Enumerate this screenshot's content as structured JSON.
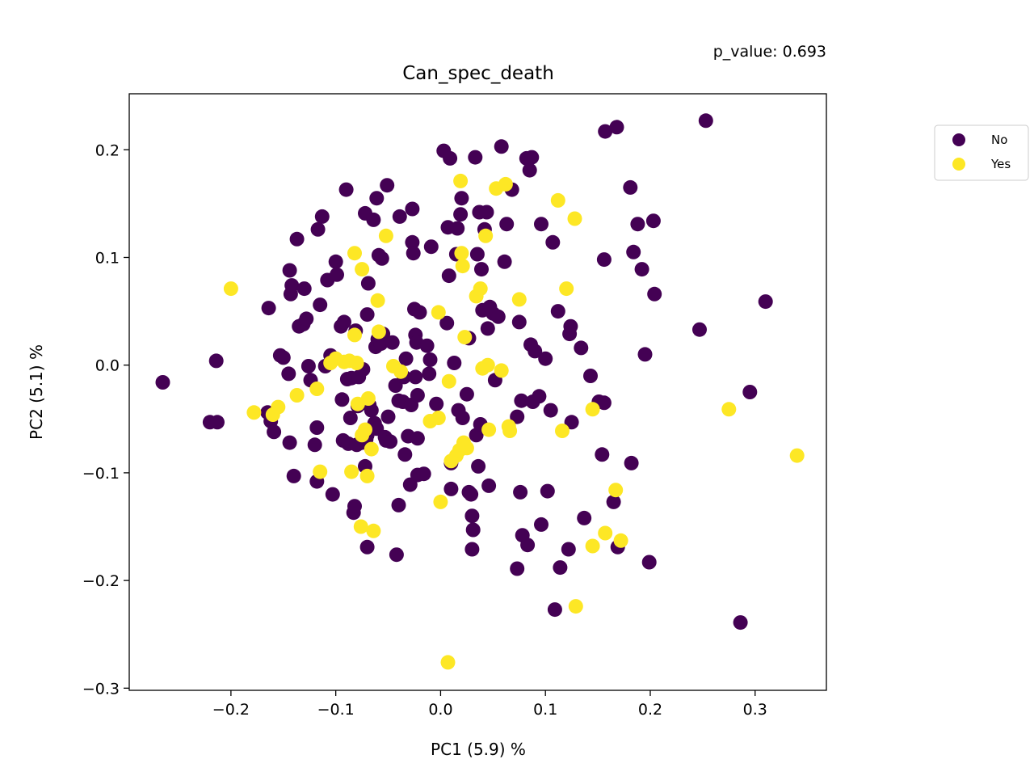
{
  "chart_data": {
    "type": "scatter",
    "title": "Can_spec_death",
    "annotation": "p_value: 0.693",
    "xlabel": "PC1 (5.9) %",
    "ylabel": "PC2 (5.1) %",
    "xlim": [
      -0.297,
      0.368
    ],
    "ylim": [
      -0.302,
      0.252
    ],
    "xticks": [
      -0.2,
      -0.1,
      0.0,
      0.1,
      0.2,
      0.3
    ],
    "xtick_labels": [
      "−0.2",
      "−0.1",
      "0.0",
      "0.1",
      "0.2",
      "0.3"
    ],
    "yticks": [
      0.2,
      0.1,
      0.0,
      -0.1,
      -0.2,
      -0.3
    ],
    "ytick_labels": [
      "0.2",
      "0.1",
      "0.0",
      "−0.1",
      "−0.2",
      "−0.3"
    ],
    "grid": false,
    "legend": {
      "placement": "outside-right-top"
    },
    "series": [
      {
        "name": "No",
        "color": "#440154",
        "points": [
          [
            -0.265,
            -0.016
          ],
          [
            -0.22,
            -0.053
          ],
          [
            -0.213,
            -0.053
          ],
          [
            -0.214,
            0.004
          ],
          [
            -0.164,
            0.053
          ],
          [
            -0.165,
            -0.044
          ],
          [
            -0.162,
            -0.052
          ],
          [
            -0.159,
            -0.062
          ],
          [
            -0.153,
            0.009
          ],
          [
            -0.15,
            0.007
          ],
          [
            -0.145,
            -0.008
          ],
          [
            -0.144,
            -0.072
          ],
          [
            -0.144,
            0.088
          ],
          [
            -0.143,
            0.066
          ],
          [
            -0.142,
            0.074
          ],
          [
            -0.14,
            -0.103
          ],
          [
            -0.137,
            0.117
          ],
          [
            -0.135,
            0.036
          ],
          [
            -0.131,
            0.038
          ],
          [
            -0.13,
            0.071
          ],
          [
            -0.128,
            0.043
          ],
          [
            -0.126,
            -0.001
          ],
          [
            -0.124,
            -0.014
          ],
          [
            -0.12,
            -0.074
          ],
          [
            -0.118,
            -0.058
          ],
          [
            -0.118,
            -0.108
          ],
          [
            -0.117,
            0.126
          ],
          [
            -0.115,
            0.056
          ],
          [
            -0.113,
            0.138
          ],
          [
            -0.11,
            -0.001
          ],
          [
            -0.108,
            0.079
          ],
          [
            -0.105,
            0.009
          ],
          [
            -0.103,
            -0.12
          ],
          [
            -0.1,
            0.096
          ],
          [
            -0.099,
            0.084
          ],
          [
            -0.095,
            0.036
          ],
          [
            -0.094,
            -0.032
          ],
          [
            -0.093,
            -0.07
          ],
          [
            -0.092,
            0.04
          ],
          [
            -0.09,
            0.163
          ],
          [
            -0.089,
            -0.013
          ],
          [
            -0.088,
            -0.073
          ],
          [
            -0.086,
            -0.049
          ],
          [
            -0.085,
            -0.012
          ],
          [
            -0.083,
            -0.137
          ],
          [
            -0.082,
            -0.131
          ],
          [
            -0.081,
            0.032
          ],
          [
            -0.08,
            -0.074
          ],
          [
            -0.079,
            -0.038
          ],
          [
            -0.078,
            -0.011
          ],
          [
            -0.075,
            -0.072
          ],
          [
            -0.074,
            -0.004
          ],
          [
            -0.072,
            0.141
          ],
          [
            -0.072,
            -0.094
          ],
          [
            -0.071,
            -0.069
          ],
          [
            -0.07,
            -0.065
          ],
          [
            -0.07,
            0.047
          ],
          [
            -0.07,
            -0.169
          ],
          [
            -0.068,
            -0.037
          ],
          [
            -0.069,
            0.076
          ],
          [
            -0.066,
            -0.042
          ],
          [
            -0.064,
            0.135
          ],
          [
            -0.063,
            -0.054
          ],
          [
            -0.062,
            0.017
          ],
          [
            -0.061,
            -0.059
          ],
          [
            -0.061,
            0.155
          ],
          [
            -0.06,
            0.024
          ],
          [
            -0.059,
            0.102
          ],
          [
            -0.057,
            0.02
          ],
          [
            -0.056,
            0.099
          ],
          [
            -0.055,
            0.029
          ],
          [
            -0.053,
            -0.067
          ],
          [
            -0.052,
            -0.07
          ],
          [
            -0.051,
            0.167
          ],
          [
            -0.05,
            -0.048
          ],
          [
            -0.048,
            -0.071
          ],
          [
            -0.046,
            0.021
          ],
          [
            -0.043,
            -0.019
          ],
          [
            -0.042,
            -0.176
          ],
          [
            -0.04,
            -0.13
          ],
          [
            -0.04,
            -0.033
          ],
          [
            -0.039,
            0.138
          ],
          [
            -0.036,
            -0.034
          ],
          [
            -0.035,
            -0.011
          ],
          [
            -0.034,
            -0.083
          ],
          [
            -0.033,
            0.006
          ],
          [
            -0.031,
            -0.066
          ],
          [
            -0.029,
            -0.111
          ],
          [
            -0.028,
            -0.037
          ],
          [
            -0.027,
            0.145
          ],
          [
            -0.027,
            0.114
          ],
          [
            -0.026,
            0.104
          ],
          [
            -0.025,
            0.052
          ],
          [
            -0.024,
            0.028
          ],
          [
            -0.024,
            -0.011
          ],
          [
            -0.023,
            0.021
          ],
          [
            -0.022,
            -0.028
          ],
          [
            -0.022,
            -0.102
          ],
          [
            -0.022,
            -0.068
          ],
          [
            -0.02,
            0.049
          ],
          [
            -0.016,
            -0.101
          ],
          [
            -0.013,
            0.018
          ],
          [
            -0.011,
            -0.008
          ],
          [
            -0.01,
            0.005
          ],
          [
            -0.009,
            0.11
          ],
          [
            -0.004,
            -0.036
          ],
          [
            0.003,
            0.199
          ],
          [
            0.006,
            0.039
          ],
          [
            0.007,
            0.128
          ],
          [
            0.008,
            0.083
          ],
          [
            0.009,
            0.192
          ],
          [
            0.01,
            -0.091
          ],
          [
            0.01,
            -0.115
          ],
          [
            0.013,
            0.002
          ],
          [
            0.015,
            0.103
          ],
          [
            0.016,
            0.127
          ],
          [
            0.017,
            -0.042
          ],
          [
            0.019,
            0.14
          ],
          [
            0.02,
            0.155
          ],
          [
            0.021,
            -0.049
          ],
          [
            0.025,
            -0.027
          ],
          [
            0.027,
            0.025
          ],
          [
            0.027,
            -0.118
          ],
          [
            0.029,
            -0.12
          ],
          [
            0.03,
            -0.14
          ],
          [
            0.031,
            -0.153
          ],
          [
            0.03,
            -0.171
          ],
          [
            0.033,
            0.193
          ],
          [
            0.034,
            -0.065
          ],
          [
            0.035,
            0.103
          ],
          [
            0.036,
            -0.094
          ],
          [
            0.037,
            0.142
          ],
          [
            0.038,
            -0.055
          ],
          [
            0.039,
            0.089
          ],
          [
            0.04,
            0.051
          ],
          [
            0.042,
            0.126
          ],
          [
            0.044,
            0.142
          ],
          [
            0.045,
            0.034
          ],
          [
            0.046,
            -0.112
          ],
          [
            0.047,
            0.054
          ],
          [
            0.05,
            0.048
          ],
          [
            0.052,
            -0.014
          ],
          [
            0.055,
            0.045
          ],
          [
            0.058,
            0.203
          ],
          [
            0.061,
            0.096
          ],
          [
            0.063,
            0.131
          ],
          [
            0.068,
            0.163
          ],
          [
            0.073,
            -0.048
          ],
          [
            0.073,
            -0.189
          ],
          [
            0.075,
            0.04
          ],
          [
            0.076,
            -0.118
          ],
          [
            0.077,
            -0.033
          ],
          [
            0.078,
            -0.158
          ],
          [
            0.082,
            0.192
          ],
          [
            0.083,
            -0.167
          ],
          [
            0.085,
            0.181
          ],
          [
            0.086,
            0.019
          ],
          [
            0.087,
            0.193
          ],
          [
            0.088,
            -0.034
          ],
          [
            0.09,
            0.013
          ],
          [
            0.094,
            -0.029
          ],
          [
            0.096,
            -0.148
          ],
          [
            0.096,
            0.131
          ],
          [
            0.1,
            0.006
          ],
          [
            0.102,
            -0.117
          ],
          [
            0.105,
            -0.042
          ],
          [
            0.107,
            0.114
          ],
          [
            0.109,
            -0.227
          ],
          [
            0.112,
            0.05
          ],
          [
            0.114,
            -0.188
          ],
          [
            0.122,
            -0.171
          ],
          [
            0.123,
            0.029
          ],
          [
            0.124,
            0.036
          ],
          [
            0.125,
            -0.053
          ],
          [
            0.134,
            0.016
          ],
          [
            0.137,
            -0.142
          ],
          [
            0.143,
            -0.01
          ],
          [
            0.151,
            -0.034
          ],
          [
            0.154,
            -0.083
          ],
          [
            0.156,
            0.098
          ],
          [
            0.156,
            -0.035
          ],
          [
            0.157,
            0.217
          ],
          [
            0.165,
            -0.127
          ],
          [
            0.168,
            0.221
          ],
          [
            0.169,
            -0.169
          ],
          [
            0.181,
            0.165
          ],
          [
            0.182,
            -0.091
          ],
          [
            0.184,
            0.105
          ],
          [
            0.188,
            0.131
          ],
          [
            0.192,
            0.089
          ],
          [
            0.195,
            0.01
          ],
          [
            0.199,
            -0.183
          ],
          [
            0.203,
            0.134
          ],
          [
            0.204,
            0.066
          ],
          [
            0.247,
            0.033
          ],
          [
            0.253,
            0.227
          ],
          [
            0.286,
            -0.239
          ],
          [
            0.295,
            -0.025
          ],
          [
            0.31,
            0.059
          ]
        ]
      },
      {
        "name": "Yes",
        "color": "#fde725",
        "points": [
          [
            -0.2,
            0.071
          ],
          [
            -0.178,
            -0.044
          ],
          [
            -0.16,
            -0.046
          ],
          [
            -0.155,
            -0.039
          ],
          [
            -0.137,
            -0.028
          ],
          [
            -0.118,
            -0.022
          ],
          [
            -0.115,
            -0.099
          ],
          [
            -0.105,
            0.002
          ],
          [
            -0.1,
            0.006
          ],
          [
            -0.092,
            0.003
          ],
          [
            -0.087,
            0.004
          ],
          [
            -0.085,
            -0.099
          ],
          [
            -0.082,
            0.104
          ],
          [
            -0.082,
            0.028
          ],
          [
            -0.08,
            0.002
          ],
          [
            -0.079,
            -0.036
          ],
          [
            -0.075,
            0.089
          ],
          [
            -0.076,
            -0.15
          ],
          [
            -0.075,
            -0.065
          ],
          [
            -0.072,
            -0.06
          ],
          [
            -0.07,
            -0.103
          ],
          [
            -0.069,
            -0.031
          ],
          [
            -0.066,
            -0.078
          ],
          [
            -0.064,
            -0.154
          ],
          [
            -0.06,
            0.06
          ],
          [
            -0.059,
            0.031
          ],
          [
            -0.052,
            0.12
          ],
          [
            -0.045,
            -0.001
          ],
          [
            -0.038,
            -0.006
          ],
          [
            -0.01,
            -0.052
          ],
          [
            -0.002,
            0.049
          ],
          [
            -0.002,
            -0.049
          ],
          [
            0.0,
            -0.127
          ],
          [
            0.007,
            -0.276
          ],
          [
            0.008,
            -0.015
          ],
          [
            0.01,
            -0.089
          ],
          [
            0.015,
            -0.084
          ],
          [
            0.018,
            -0.079
          ],
          [
            0.019,
            0.171
          ],
          [
            0.02,
            0.104
          ],
          [
            0.021,
            0.092
          ],
          [
            0.022,
            -0.072
          ],
          [
            0.023,
            0.026
          ],
          [
            0.025,
            -0.077
          ],
          [
            0.034,
            0.064
          ],
          [
            0.038,
            0.071
          ],
          [
            0.04,
            -0.003
          ],
          [
            0.043,
            0.12
          ],
          [
            0.045,
            0.0
          ],
          [
            0.046,
            -0.06
          ],
          [
            0.053,
            0.164
          ],
          [
            0.058,
            -0.005
          ],
          [
            0.062,
            0.168
          ],
          [
            0.065,
            -0.057
          ],
          [
            0.066,
            -0.061
          ],
          [
            0.075,
            0.061
          ],
          [
            0.112,
            0.153
          ],
          [
            0.116,
            -0.061
          ],
          [
            0.12,
            0.071
          ],
          [
            0.128,
            0.136
          ],
          [
            0.129,
            -0.224
          ],
          [
            0.145,
            -0.041
          ],
          [
            0.145,
            -0.168
          ],
          [
            0.157,
            -0.156
          ],
          [
            0.167,
            -0.116
          ],
          [
            0.172,
            -0.163
          ],
          [
            0.275,
            -0.041
          ],
          [
            0.34,
            -0.084
          ]
        ]
      }
    ]
  }
}
